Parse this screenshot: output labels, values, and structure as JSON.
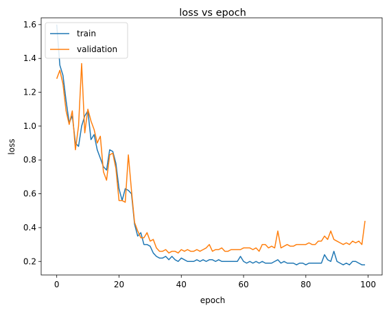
{
  "chart_data": {
    "type": "line",
    "title": "loss vs epoch",
    "xlabel": "epoch",
    "ylabel": "loss",
    "xlim": [
      -5,
      104.5
    ],
    "ylim": [
      0.12,
      1.64
    ],
    "xticks": [
      0,
      20,
      40,
      60,
      80,
      100
    ],
    "yticks": [
      0.2,
      0.4,
      0.6,
      0.8,
      1.0,
      1.2,
      1.4,
      1.6
    ],
    "xtick_labels": [
      "0",
      "20",
      "40",
      "60",
      "80",
      "100"
    ],
    "ytick_labels": [
      "0.2",
      "0.4",
      "0.6",
      "0.8",
      "1.0",
      "1.2",
      "1.4",
      "1.6"
    ],
    "legend_position": "top-left",
    "series": [
      {
        "name": "train",
        "color": "#1f77b4",
        "x": [
          0,
          1,
          2,
          3,
          4,
          5,
          6,
          7,
          8,
          9,
          10,
          11,
          12,
          13,
          14,
          15,
          16,
          17,
          18,
          19,
          20,
          21,
          22,
          23,
          24,
          25,
          26,
          27,
          28,
          29,
          30,
          31,
          32,
          33,
          34,
          35,
          36,
          37,
          38,
          39,
          40,
          41,
          42,
          43,
          44,
          45,
          46,
          47,
          48,
          49,
          50,
          51,
          52,
          53,
          54,
          55,
          56,
          57,
          58,
          59,
          60,
          61,
          62,
          63,
          64,
          65,
          66,
          67,
          68,
          69,
          70,
          71,
          72,
          73,
          74,
          75,
          76,
          77,
          78,
          79,
          80,
          81,
          82,
          83,
          84,
          85,
          86,
          87,
          88,
          89,
          90,
          91,
          92,
          93,
          94,
          95,
          96,
          97,
          98,
          99
        ],
        "values": [
          1.6,
          1.36,
          1.3,
          1.15,
          1.02,
          1.06,
          0.9,
          0.88,
          1.0,
          1.06,
          1.09,
          0.92,
          0.95,
          0.86,
          0.81,
          0.76,
          0.74,
          0.86,
          0.85,
          0.78,
          0.63,
          0.56,
          0.63,
          0.62,
          0.6,
          0.42,
          0.35,
          0.37,
          0.3,
          0.3,
          0.29,
          0.25,
          0.23,
          0.22,
          0.22,
          0.23,
          0.21,
          0.23,
          0.21,
          0.2,
          0.22,
          0.21,
          0.2,
          0.2,
          0.2,
          0.21,
          0.2,
          0.21,
          0.2,
          0.21,
          0.21,
          0.2,
          0.21,
          0.2,
          0.2,
          0.2,
          0.2,
          0.2,
          0.2,
          0.23,
          0.2,
          0.19,
          0.2,
          0.19,
          0.2,
          0.19,
          0.2,
          0.19,
          0.19,
          0.19,
          0.2,
          0.21,
          0.19,
          0.2,
          0.19,
          0.19,
          0.19,
          0.18,
          0.19,
          0.19,
          0.18,
          0.19,
          0.19,
          0.19,
          0.19,
          0.19,
          0.24,
          0.21,
          0.2,
          0.26,
          0.2,
          0.19,
          0.18,
          0.19,
          0.18,
          0.2,
          0.2,
          0.19,
          0.18,
          0.18
        ]
      },
      {
        "name": "validation",
        "color": "#ff7f0e",
        "x": [
          0,
          1,
          2,
          3,
          4,
          5,
          6,
          7,
          8,
          9,
          10,
          11,
          12,
          13,
          14,
          15,
          16,
          17,
          18,
          19,
          20,
          21,
          22,
          23,
          24,
          25,
          26,
          27,
          28,
          29,
          30,
          31,
          32,
          33,
          34,
          35,
          36,
          37,
          38,
          39,
          40,
          41,
          42,
          43,
          44,
          45,
          46,
          47,
          48,
          49,
          50,
          51,
          52,
          53,
          54,
          55,
          56,
          57,
          58,
          59,
          60,
          61,
          62,
          63,
          64,
          65,
          66,
          67,
          68,
          69,
          70,
          71,
          72,
          73,
          74,
          75,
          76,
          77,
          78,
          79,
          80,
          81,
          82,
          83,
          84,
          85,
          86,
          87,
          88,
          89,
          90,
          91,
          92,
          93,
          94,
          95,
          96,
          97,
          98,
          99
        ],
        "values": [
          1.28,
          1.33,
          1.25,
          1.09,
          1.01,
          1.09,
          0.86,
          1.0,
          1.37,
          0.96,
          1.1,
          1.03,
          0.98,
          0.9,
          0.94,
          0.73,
          0.68,
          0.83,
          0.84,
          0.75,
          0.56,
          0.56,
          0.55,
          0.83,
          0.62,
          0.43,
          0.38,
          0.34,
          0.34,
          0.37,
          0.32,
          0.33,
          0.28,
          0.26,
          0.26,
          0.27,
          0.25,
          0.26,
          0.26,
          0.25,
          0.27,
          0.26,
          0.27,
          0.26,
          0.26,
          0.27,
          0.26,
          0.27,
          0.28,
          0.3,
          0.26,
          0.27,
          0.27,
          0.28,
          0.26,
          0.26,
          0.27,
          0.27,
          0.27,
          0.27,
          0.28,
          0.28,
          0.28,
          0.27,
          0.28,
          0.26,
          0.3,
          0.3,
          0.28,
          0.29,
          0.28,
          0.38,
          0.28,
          0.29,
          0.3,
          0.29,
          0.29,
          0.3,
          0.3,
          0.3,
          0.3,
          0.31,
          0.3,
          0.3,
          0.32,
          0.32,
          0.35,
          0.33,
          0.38,
          0.33,
          0.32,
          0.31,
          0.3,
          0.31,
          0.3,
          0.32,
          0.31,
          0.32,
          0.3,
          0.44
        ]
      }
    ]
  }
}
